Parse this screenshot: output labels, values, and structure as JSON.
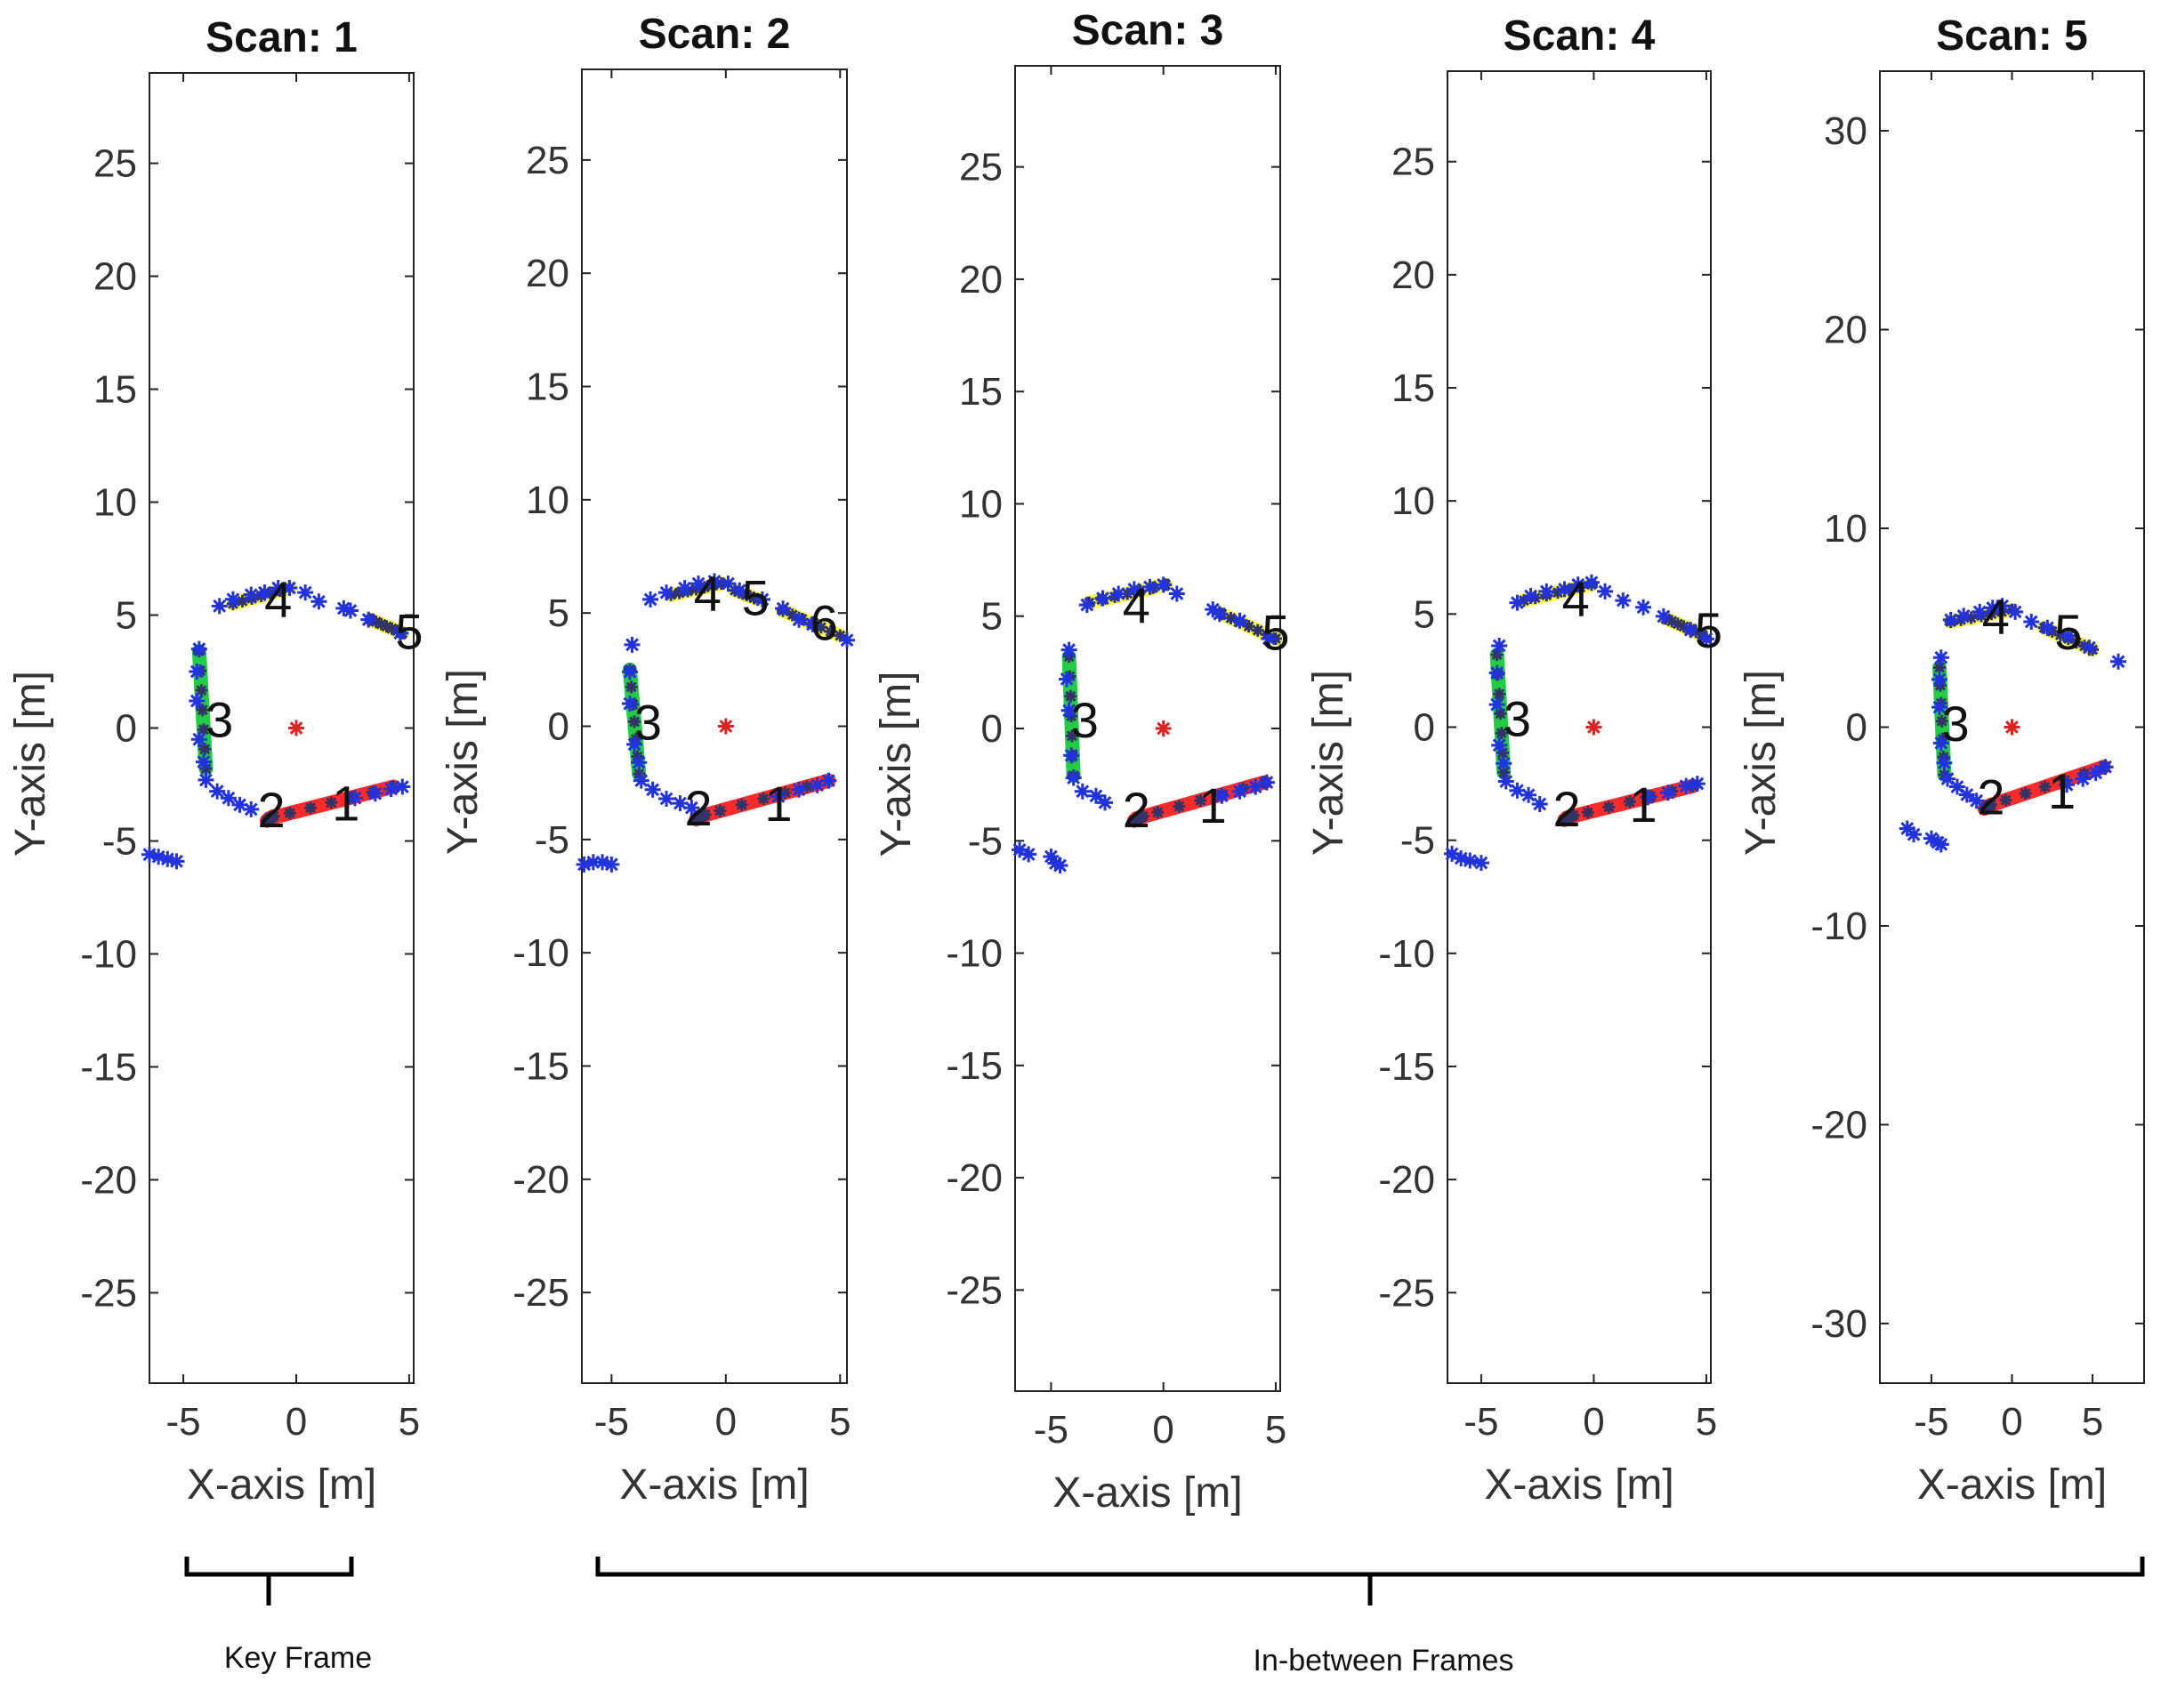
{
  "chart_data": [
    {
      "type": "scatter",
      "title": "Scan: 1",
      "xlabel": "X-axis [m]",
      "ylabel": "Y-axis [m]",
      "xlim": [
        -6.5,
        5.2
      ],
      "ylim": [
        -29,
        29
      ],
      "xticks": [
        -5,
        0,
        5
      ],
      "yticks": [
        -25,
        -20,
        -15,
        -10,
        -5,
        0,
        5,
        10,
        15,
        20,
        25
      ],
      "origin": [
        0,
        0
      ],
      "points": [
        [
          -6.5,
          -5.6
        ],
        [
          -6.1,
          -5.7
        ],
        [
          -5.7,
          -5.8
        ],
        [
          -5.3,
          -5.9
        ],
        [
          -4.3,
          3.5
        ],
        [
          -4.4,
          2.5
        ],
        [
          -4.4,
          1.2
        ],
        [
          -4.3,
          -0.5
        ],
        [
          -4.1,
          -1.5
        ],
        [
          -4.0,
          -2.3
        ],
        [
          -3.5,
          -2.8
        ],
        [
          -3.0,
          -3.1
        ],
        [
          -2.5,
          -3.4
        ],
        [
          -2.0,
          -3.6
        ],
        [
          -3.4,
          5.4
        ],
        [
          -2.8,
          5.7
        ],
        [
          -2.0,
          5.9
        ],
        [
          -1.4,
          6.0
        ],
        [
          -0.8,
          6.2
        ],
        [
          -0.3,
          6.2
        ],
        [
          0.4,
          6.0
        ],
        [
          1.0,
          5.6
        ],
        [
          2.1,
          5.3
        ],
        [
          2.4,
          5.2
        ],
        [
          3.2,
          4.8
        ],
        [
          4.6,
          4.2
        ],
        [
          4.7,
          -2.6
        ],
        [
          4.2,
          -2.7
        ],
        [
          3.5,
          -2.9
        ],
        [
          2.6,
          -3.1
        ]
      ],
      "segments": [
        {
          "label": "1",
          "color": "#ff2a2a",
          "from": [
            -1.2,
            -4.0
          ],
          "to": [
            4.3,
            -2.6
          ],
          "label_at": [
            2.2,
            -3.3
          ]
        },
        {
          "label": "2",
          "color": "#ff2a2a",
          "from": [
            -1.3,
            -4.1
          ],
          "to": [
            -1.0,
            -3.9
          ],
          "label_at": [
            -1.1,
            -3.6
          ]
        },
        {
          "label": "3",
          "color": "#22cc44",
          "from": [
            -4.3,
            3.4
          ],
          "to": [
            -4.0,
            -1.8
          ],
          "label_at": [
            -3.4,
            0.4
          ]
        },
        {
          "label": "4",
          "color": "#ffff44",
          "from": [
            -2.8,
            5.5
          ],
          "to": [
            -0.3,
            6.2
          ],
          "label_at": [
            -0.8,
            5.7
          ]
        },
        {
          "label": "5",
          "color": "#ffff44",
          "from": [
            3.3,
            4.8
          ],
          "to": [
            4.7,
            4.2
          ],
          "label_at": [
            5.0,
            4.3
          ]
        }
      ]
    },
    {
      "type": "scatter",
      "title": "Scan: 2",
      "xlabel": "X-axis [m]",
      "ylabel": "Y-axis [m]",
      "xlim": [
        -6.3,
        5.3
      ],
      "ylim": [
        -29,
        29
      ],
      "xticks": [
        -5,
        0,
        5
      ],
      "yticks": [
        -25,
        -20,
        -15,
        -10,
        -5,
        0,
        5,
        10,
        15,
        20,
        25
      ],
      "origin": [
        0,
        0
      ],
      "points": [
        [
          -6.2,
          -6.1
        ],
        [
          -5.8,
          -6.0
        ],
        [
          -5.4,
          -6.0
        ],
        [
          -5.0,
          -6.1
        ],
        [
          -4.1,
          3.6
        ],
        [
          -4.2,
          2.4
        ],
        [
          -4.2,
          1.0
        ],
        [
          -4.0,
          -0.8
        ],
        [
          -3.8,
          -1.6
        ],
        [
          -3.7,
          -2.4
        ],
        [
          -3.2,
          -2.8
        ],
        [
          -2.6,
          -3.2
        ],
        [
          -2.0,
          -3.4
        ],
        [
          -1.5,
          -3.6
        ],
        [
          -3.3,
          5.6
        ],
        [
          -2.6,
          5.9
        ],
        [
          -1.8,
          6.1
        ],
        [
          -1.2,
          6.3
        ],
        [
          -0.5,
          6.4
        ],
        [
          0.1,
          6.3
        ],
        [
          0.6,
          6.0
        ],
        [
          1.6,
          5.6
        ],
        [
          2.5,
          5.2
        ],
        [
          3.2,
          4.7
        ],
        [
          3.8,
          4.5
        ],
        [
          5.3,
          3.8
        ],
        [
          4.5,
          -2.4
        ],
        [
          4.0,
          -2.6
        ],
        [
          3.2,
          -2.8
        ],
        [
          2.3,
          -3.1
        ]
      ],
      "segments": [
        {
          "label": "1",
          "color": "#ff2a2a",
          "from": [
            -1.2,
            -4.0
          ],
          "to": [
            4.5,
            -2.4
          ],
          "label_at": [
            2.3,
            -3.4
          ]
        },
        {
          "label": "2",
          "color": "#ff2a2a",
          "from": [
            -1.3,
            -4.1
          ],
          "to": [
            -0.9,
            -3.9
          ],
          "label_at": [
            -1.2,
            -3.6
          ]
        },
        {
          "label": "3",
          "color": "#22cc44",
          "from": [
            -4.2,
            2.5
          ],
          "to": [
            -3.8,
            -2.1
          ],
          "label_at": [
            -3.4,
            0.2
          ]
        },
        {
          "label": "4",
          "color": "#ffff44",
          "from": [
            -2.4,
            5.8
          ],
          "to": [
            -0.2,
            6.3
          ],
          "label_at": [
            -0.8,
            5.9
          ]
        },
        {
          "label": "5",
          "color": "#ffff44",
          "from": [
            0.4,
            6.0
          ],
          "to": [
            1.4,
            5.6
          ],
          "label_at": [
            1.3,
            5.7
          ]
        },
        {
          "label": "6",
          "color": "#ffff44",
          "from": [
            2.5,
            5.1
          ],
          "to": [
            5.0,
            4.0
          ],
          "label_at": [
            4.3,
            4.6
          ]
        }
      ]
    },
    {
      "type": "scatter",
      "title": "Scan: 3",
      "xlabel": "X-axis [m]",
      "ylabel": "Y-axis [m]",
      "xlim": [
        -6.6,
        5.2
      ],
      "ylim": [
        -29.5,
        29.5
      ],
      "xticks": [
        -5,
        0,
        5
      ],
      "yticks": [
        -25,
        -20,
        -15,
        -10,
        -5,
        0,
        5,
        10,
        15,
        20,
        25
      ],
      "origin": [
        0,
        0
      ],
      "points": [
        [
          -6.4,
          -5.4
        ],
        [
          -6.0,
          -5.6
        ],
        [
          -5.0,
          -5.7
        ],
        [
          -4.8,
          -6.0
        ],
        [
          -4.6,
          -6.1
        ],
        [
          -4.2,
          3.5
        ],
        [
          -4.3,
          2.2
        ],
        [
          -4.2,
          0.8
        ],
        [
          -4.1,
          -1.2
        ],
        [
          -4.0,
          -2.2
        ],
        [
          -3.6,
          -2.8
        ],
        [
          -3.0,
          -3.0
        ],
        [
          -2.6,
          -3.3
        ],
        [
          -3.4,
          5.5
        ],
        [
          -2.7,
          5.8
        ],
        [
          -2.0,
          6.0
        ],
        [
          -1.3,
          6.2
        ],
        [
          -0.6,
          6.3
        ],
        [
          0.0,
          6.4
        ],
        [
          0.6,
          6.0
        ],
        [
          2.2,
          5.3
        ],
        [
          2.5,
          5.1
        ],
        [
          3.4,
          4.8
        ],
        [
          4.7,
          4.0
        ],
        [
          4.6,
          -2.4
        ],
        [
          4.1,
          -2.6
        ],
        [
          3.4,
          -2.8
        ],
        [
          2.6,
          -3.0
        ]
      ],
      "segments": [
        {
          "label": "1",
          "color": "#ff2a2a",
          "from": [
            -1.2,
            -4.0
          ],
          "to": [
            4.5,
            -2.4
          ],
          "label_at": [
            2.2,
            -3.4
          ]
        },
        {
          "label": "2",
          "color": "#ff2a2a",
          "from": [
            -1.3,
            -4.1
          ],
          "to": [
            -0.9,
            -3.9
          ],
          "label_at": [
            -1.2,
            -3.6
          ]
        },
        {
          "label": "3",
          "color": "#22cc44",
          "from": [
            -4.2,
            3.2
          ],
          "to": [
            -4.0,
            -2.1
          ],
          "label_at": [
            -3.5,
            0.4
          ]
        },
        {
          "label": "4",
          "color": "#ffff44",
          "from": [
            -3.3,
            5.6
          ],
          "to": [
            0.1,
            6.4
          ],
          "label_at": [
            -1.2,
            5.5
          ]
        },
        {
          "label": "5",
          "color": "#ffff44",
          "from": [
            2.6,
            5.1
          ],
          "to": [
            5.0,
            4.0
          ],
          "label_at": [
            5.0,
            4.3
          ]
        }
      ]
    },
    {
      "type": "scatter",
      "title": "Scan: 4",
      "xlabel": "X-axis [m]",
      "ylabel": "Y-axis [m]",
      "xlim": [
        -6.5,
        5.2
      ],
      "ylim": [
        -29,
        29
      ],
      "xticks": [
        -5,
        0,
        5
      ],
      "yticks": [
        -25,
        -20,
        -15,
        -10,
        -5,
        0,
        5,
        10,
        15,
        20,
        25
      ],
      "origin": [
        0,
        0
      ],
      "points": [
        [
          -6.3,
          -5.6
        ],
        [
          -5.9,
          -5.8
        ],
        [
          -5.5,
          -5.9
        ],
        [
          -5.0,
          -6.0
        ],
        [
          -4.2,
          3.6
        ],
        [
          -4.3,
          2.4
        ],
        [
          -4.3,
          1.0
        ],
        [
          -4.2,
          -0.8
        ],
        [
          -4.0,
          -1.6
        ],
        [
          -3.9,
          -2.4
        ],
        [
          -3.4,
          -2.8
        ],
        [
          -2.9,
          -3.0
        ],
        [
          -2.4,
          -3.4
        ],
        [
          -3.4,
          5.5
        ],
        [
          -2.8,
          5.8
        ],
        [
          -2.1,
          6.0
        ],
        [
          -1.3,
          6.1
        ],
        [
          -0.7,
          6.3
        ],
        [
          -0.1,
          6.4
        ],
        [
          0.5,
          6.0
        ],
        [
          1.3,
          5.6
        ],
        [
          2.2,
          5.3
        ],
        [
          3.1,
          4.9
        ],
        [
          4.3,
          4.3
        ],
        [
          5.0,
          3.9
        ],
        [
          4.6,
          -2.5
        ],
        [
          4.1,
          -2.6
        ],
        [
          3.3,
          -2.9
        ],
        [
          2.4,
          -3.1
        ]
      ],
      "segments": [
        {
          "label": "1",
          "color": "#ff2a2a",
          "from": [
            -1.2,
            -4.0
          ],
          "to": [
            4.4,
            -2.6
          ],
          "label_at": [
            2.2,
            -3.4
          ]
        },
        {
          "label": "2",
          "color": "#ff2a2a",
          "from": [
            -1.3,
            -4.1
          ],
          "to": [
            -0.9,
            -3.9
          ],
          "label_at": [
            -1.2,
            -3.6
          ]
        },
        {
          "label": "3",
          "color": "#22cc44",
          "from": [
            -4.3,
            3.2
          ],
          "to": [
            -4.0,
            -2.0
          ],
          "label_at": [
            -3.4,
            0.4
          ]
        },
        {
          "label": "4",
          "color": "#ffff44",
          "from": [
            -3.1,
            5.6
          ],
          "to": [
            -0.1,
            6.3
          ],
          "label_at": [
            -0.8,
            5.7
          ]
        },
        {
          "label": "5",
          "color": "#ffff44",
          "from": [
            3.2,
            4.8
          ],
          "to": [
            4.8,
            4.1
          ],
          "label_at": [
            5.1,
            4.3
          ]
        }
      ]
    },
    {
      "type": "scatter",
      "title": "Scan: 5",
      "xlabel": "X-axis [m]",
      "ylabel": "Y-axis [m]",
      "xlim": [
        -8.2,
        8.2
      ],
      "ylim": [
        -33,
        33
      ],
      "xticks": [
        -5,
        0,
        5
      ],
      "yticks": [
        -30,
        -20,
        -10,
        0,
        10,
        20,
        30
      ],
      "origin": [
        0,
        0
      ],
      "points": [
        [
          -6.5,
          -5.1
        ],
        [
          -6.1,
          -5.4
        ],
        [
          -5.0,
          -5.6
        ],
        [
          -4.6,
          -5.8
        ],
        [
          -4.4,
          -5.9
        ],
        [
          -4.4,
          3.5
        ],
        [
          -4.5,
          2.4
        ],
        [
          -4.5,
          1.0
        ],
        [
          -4.4,
          -0.8
        ],
        [
          -4.2,
          -1.8
        ],
        [
          -4.0,
          -2.6
        ],
        [
          -3.4,
          -3.0
        ],
        [
          -2.8,
          -3.4
        ],
        [
          -2.2,
          -3.7
        ],
        [
          -3.8,
          5.4
        ],
        [
          -3.0,
          5.6
        ],
        [
          -2.0,
          5.8
        ],
        [
          -1.2,
          6.0
        ],
        [
          -0.6,
          6.1
        ],
        [
          0.2,
          5.8
        ],
        [
          1.2,
          5.3
        ],
        [
          2.2,
          5.0
        ],
        [
          3.5,
          4.6
        ],
        [
          4.8,
          4.0
        ],
        [
          6.6,
          3.3
        ],
        [
          5.8,
          -2.0
        ],
        [
          5.2,
          -2.3
        ],
        [
          4.4,
          -2.6
        ],
        [
          3.4,
          -2.9
        ]
      ],
      "segments": [
        {
          "label": "1",
          "color": "#ff2a2a",
          "from": [
            -1.6,
            -4.0
          ],
          "to": [
            5.7,
            -2.0
          ],
          "label_at": [
            3.1,
            -3.2
          ]
        },
        {
          "label": "2",
          "color": "#ff2a2a",
          "from": [
            -1.7,
            -4.1
          ],
          "to": [
            -1.3,
            -3.9
          ],
          "label_at": [
            -1.3,
            -3.5
          ]
        },
        {
          "label": "3",
          "color": "#22cc44",
          "from": [
            -4.5,
            3.0
          ],
          "to": [
            -4.2,
            -2.4
          ],
          "label_at": [
            -3.5,
            0.2
          ]
        },
        {
          "label": "4",
          "color": "#ffff44",
          "from": [
            -3.8,
            5.3
          ],
          "to": [
            0.0,
            5.9
          ],
          "label_at": [
            -1.0,
            5.6
          ]
        },
        {
          "label": "5",
          "color": "#ffff44",
          "from": [
            2.0,
            5.0
          ],
          "to": [
            5.0,
            3.9
          ],
          "label_at": [
            3.5,
            4.8
          ]
        }
      ]
    }
  ],
  "annotations": {
    "key_frame": "Key Frame",
    "in_between": "In-between Frames"
  },
  "colors": {
    "points": "#2233dd",
    "origin": "#dd2222"
  }
}
